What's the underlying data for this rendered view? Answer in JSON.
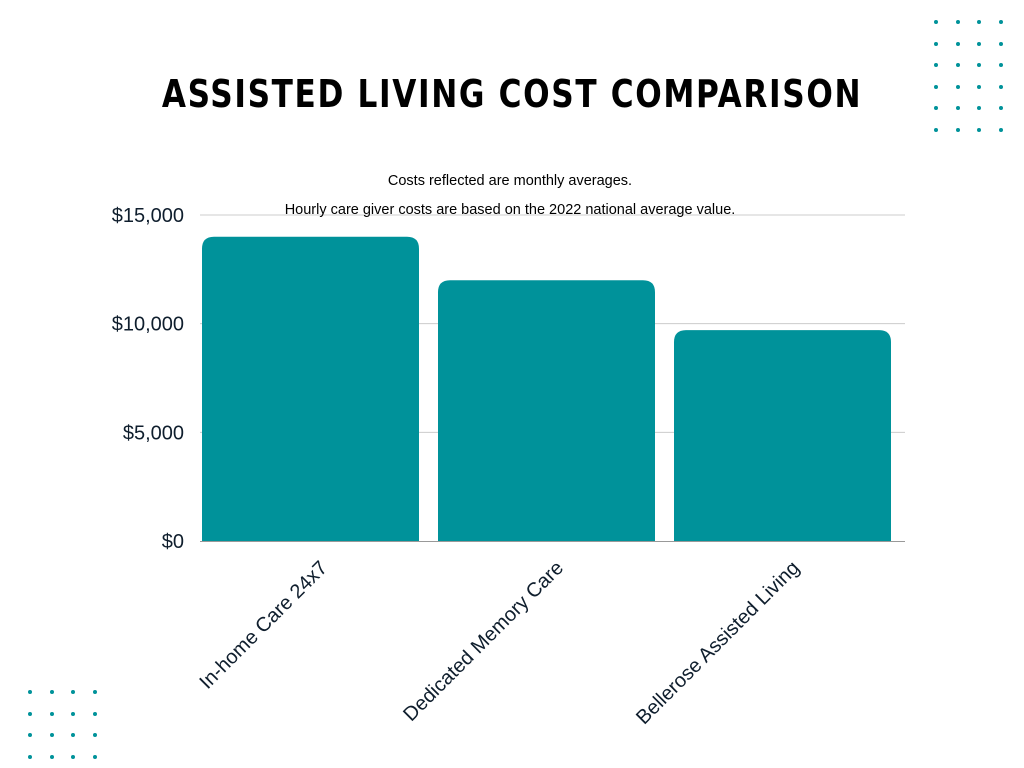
{
  "colors": {
    "bar": "#00929a",
    "dots": "#00929a",
    "grid": "#cccccc",
    "axis": "#999999",
    "text": "#1a1a1a",
    "tick_text": "#0f1e2d"
  },
  "chart_data": {
    "type": "bar",
    "title": "ASSISTED LIVING COST COMPARISON",
    "subtitle": "Costs reflected are monthly averages.",
    "note": "Hourly care giver costs are based on the 2022 national average value.",
    "categories": [
      "In-home Care 24x7",
      "Dedicated Memory Care",
      "Bellerose Assisted Living"
    ],
    "values": [
      14000,
      12000,
      9700
    ],
    "ylim": [
      0,
      15000
    ],
    "yticks": [
      0,
      5000,
      10000,
      15000
    ],
    "ytick_labels": [
      "$0",
      "$5,000",
      "$10,000",
      "$15,000"
    ],
    "xlabel": "",
    "ylabel": "",
    "grid": true,
    "legend": "none"
  }
}
